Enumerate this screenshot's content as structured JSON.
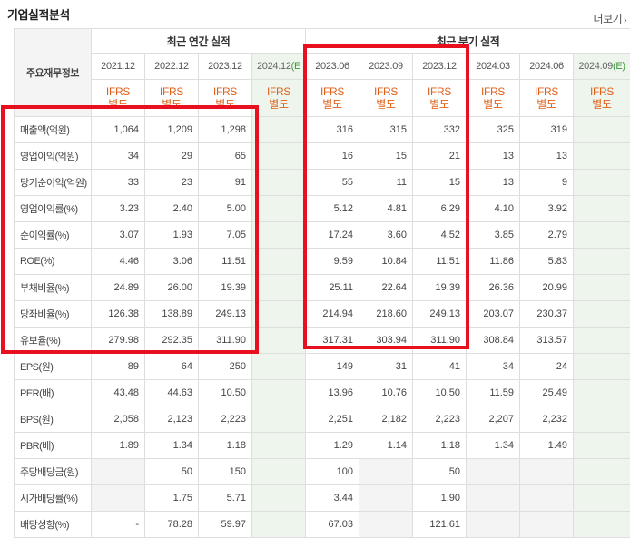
{
  "header": {
    "title": "기업실적분석",
    "more": "더보기",
    "more_icon": "chevron-right-icon"
  },
  "table": {
    "row_header": "주요재무정보",
    "groups": {
      "annual": "최근 연간 실적",
      "quarterly": "최근 분기 실적"
    },
    "periods": [
      "2021.12",
      "2022.12",
      "2023.12",
      "2024.12(E)",
      "2023.06",
      "2023.09",
      "2023.12",
      "2024.03",
      "2024.06",
      "2024.09(E)"
    ],
    "periods_split": [
      {
        "main": "2021.12",
        "suffix": ""
      },
      {
        "main": "2022.12",
        "suffix": ""
      },
      {
        "main": "2023.12",
        "suffix": ""
      },
      {
        "main": "2024.12",
        "suffix": "(E"
      },
      {
        "main": "2023.06",
        "suffix": ""
      },
      {
        "main": "2023.09",
        "suffix": ""
      },
      {
        "main": "2023.12",
        "suffix": ""
      },
      {
        "main": "2024.03",
        "suffix": ""
      },
      {
        "main": "2024.06",
        "suffix": ""
      },
      {
        "main": "2024.09",
        "suffix": "(E)"
      }
    ],
    "ifrs": {
      "line1": "IFRS",
      "line2": "별도"
    },
    "rows": [
      {
        "label": "매출액(억원)",
        "values": [
          "1,064",
          "1,209",
          "1,298",
          "",
          "316",
          "315",
          "332",
          "325",
          "319",
          ""
        ]
      },
      {
        "label": "영업이익(억원)",
        "values": [
          "34",
          "29",
          "65",
          "",
          "16",
          "15",
          "21",
          "13",
          "13",
          ""
        ]
      },
      {
        "label": "당기순이익(억원)",
        "values": [
          "33",
          "23",
          "91",
          "",
          "55",
          "11",
          "15",
          "13",
          "9",
          ""
        ]
      },
      {
        "label": "영업이익률(%)",
        "values": [
          "3.23",
          "2.40",
          "5.00",
          "",
          "5.12",
          "4.81",
          "6.29",
          "4.10",
          "3.92",
          ""
        ]
      },
      {
        "label": "순이익률(%)",
        "values": [
          "3.07",
          "1.93",
          "7.05",
          "",
          "17.24",
          "3.60",
          "4.52",
          "3.85",
          "2.79",
          ""
        ]
      },
      {
        "label": "ROE(%)",
        "values": [
          "4.46",
          "3.06",
          "11.51",
          "",
          "9.59",
          "10.84",
          "11.51",
          "11.86",
          "5.83",
          ""
        ]
      },
      {
        "label": "부채비율(%)",
        "values": [
          "24.89",
          "26.00",
          "19.39",
          "",
          "25.11",
          "22.64",
          "19.39",
          "26.36",
          "20.99",
          ""
        ]
      },
      {
        "label": "당좌비율(%)",
        "values": [
          "126.38",
          "138.89",
          "249.13",
          "",
          "214.94",
          "218.60",
          "249.13",
          "203.07",
          "230.37",
          ""
        ]
      },
      {
        "label": "유보율(%)",
        "values": [
          "279.98",
          "292.35",
          "311.90",
          "",
          "317.31",
          "303.94",
          "311.90",
          "308.84",
          "313.57",
          ""
        ]
      },
      {
        "label": "EPS(원)",
        "values": [
          "89",
          "64",
          "250",
          "",
          "149",
          "31",
          "41",
          "34",
          "24",
          ""
        ]
      },
      {
        "label": "PER(배)",
        "values": [
          "43.48",
          "44.63",
          "10.50",
          "",
          "13.96",
          "10.76",
          "10.50",
          "11.59",
          "25.49",
          ""
        ]
      },
      {
        "label": "BPS(원)",
        "values": [
          "2,058",
          "2,123",
          "2,223",
          "",
          "2,251",
          "2,182",
          "2,223",
          "2,207",
          "2,232",
          ""
        ]
      },
      {
        "label": "PBR(배)",
        "values": [
          "1.89",
          "1.34",
          "1.18",
          "",
          "1.29",
          "1.14",
          "1.18",
          "1.34",
          "1.49",
          ""
        ]
      },
      {
        "label": "주당배당금(원)",
        "values": [
          "",
          "50",
          "150",
          "",
          "100",
          "",
          "50",
          "",
          "",
          ""
        ]
      },
      {
        "label": "시가배당률(%)",
        "values": [
          "",
          "1.75",
          "5.71",
          "",
          "3.44",
          "",
          "1.90",
          "",
          "",
          ""
        ]
      },
      {
        "label": "배당성향(%)",
        "values": [
          "-",
          "78.28",
          "59.97",
          "",
          "67.03",
          "",
          "121.61",
          "",
          "",
          ""
        ]
      }
    ]
  },
  "highlight_color": "#e8101e",
  "estimate_color": "#eef5ec",
  "ifrs_color": "#e0601a"
}
